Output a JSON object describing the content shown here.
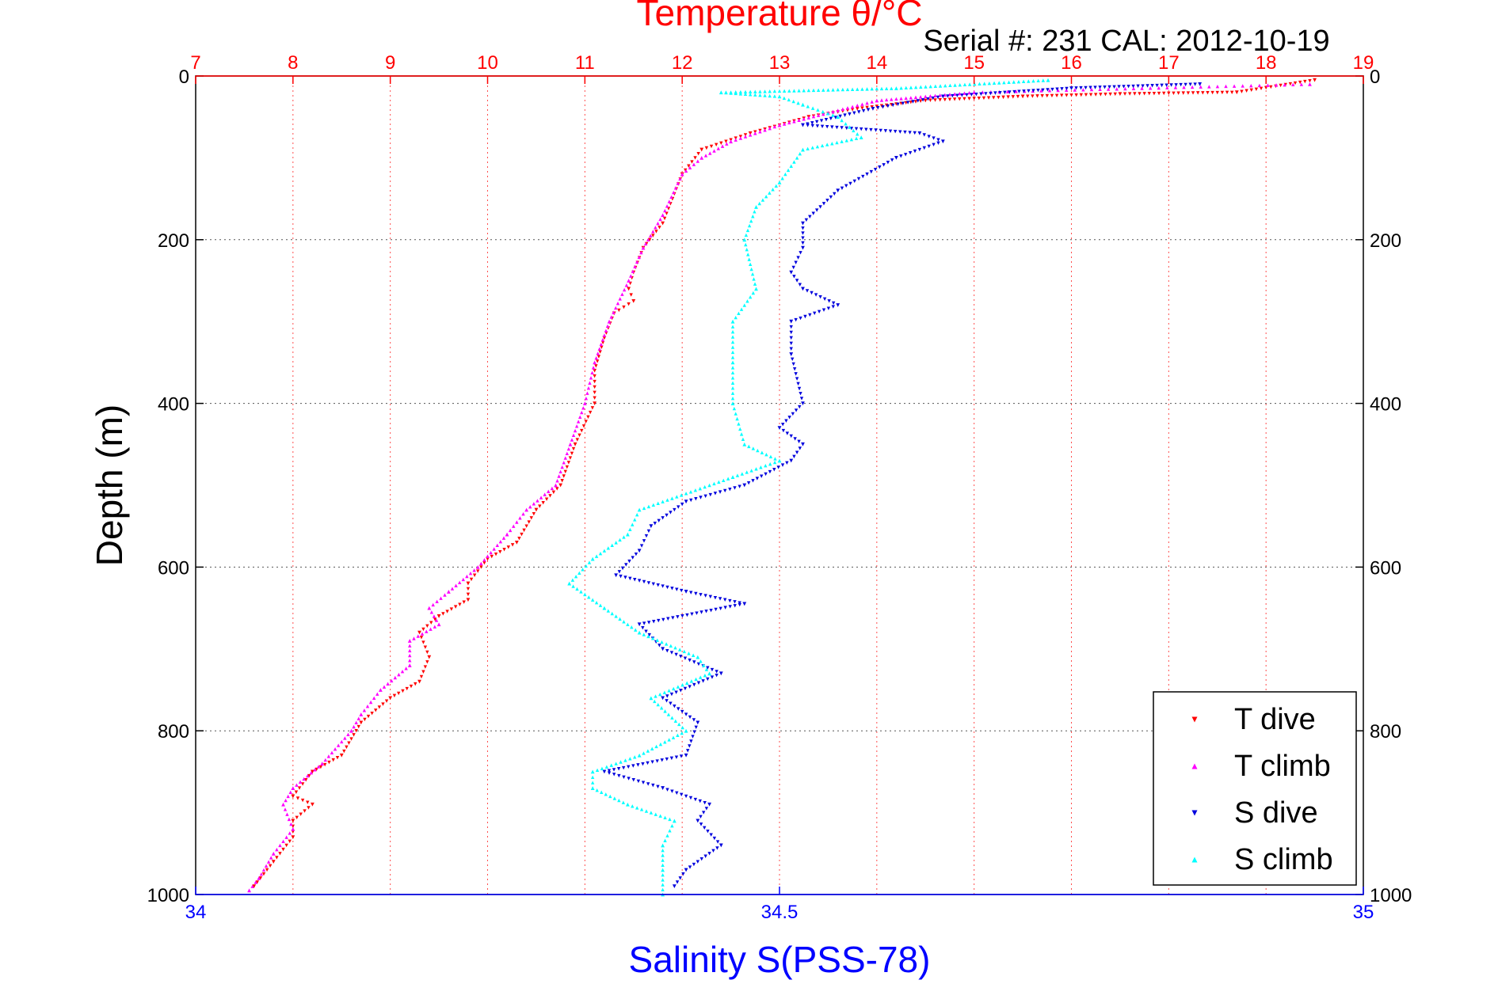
{
  "chart_data": {
    "type": "scatter",
    "title": "Temperature θ/°C",
    "subtitle": "Serial #: 231   CAL: 2012-10-19",
    "xlabel": "Salinity S(PSS-78)",
    "ylabel": "Depth (m)",
    "x_top": {
      "range": [
        7,
        19
      ],
      "ticks": [
        7,
        8,
        9,
        10,
        11,
        12,
        13,
        14,
        15,
        16,
        17,
        18,
        19
      ],
      "tick_labels": [
        "7",
        "8",
        "9",
        "10",
        "11",
        "12",
        "13",
        "14",
        "15",
        "16",
        "17",
        "18",
        "19"
      ],
      "color": "#ff0000"
    },
    "x_bottom": {
      "range": [
        34,
        35
      ],
      "ticks": [
        34,
        34.5,
        35
      ],
      "tick_labels": [
        "34",
        "34.5",
        "35"
      ],
      "color": "#0000ff"
    },
    "y": {
      "range": [
        0,
        1000
      ],
      "reversed": true,
      "ticks": [
        0,
        200,
        400,
        600,
        800,
        1000
      ],
      "tick_labels": [
        "0",
        "200",
        "400",
        "600",
        "800",
        "1000"
      ]
    },
    "grid": true,
    "legend_position": "bottom-right",
    "series": [
      {
        "name": "T dive",
        "axis": "top",
        "color": "#ff0000",
        "marker": "triangle-down",
        "points": [
          [
            18.5,
            5
          ],
          [
            17.7,
            20
          ],
          [
            16.5,
            22
          ],
          [
            15.5,
            25
          ],
          [
            14.5,
            30
          ],
          [
            13.8,
            40
          ],
          [
            13.3,
            50
          ],
          [
            12.7,
            70
          ],
          [
            12.2,
            90
          ],
          [
            12.0,
            120
          ],
          [
            11.9,
            150
          ],
          [
            11.8,
            180
          ],
          [
            11.6,
            210
          ],
          [
            11.5,
            240
          ],
          [
            11.45,
            260
          ],
          [
            11.5,
            275
          ],
          [
            11.3,
            290
          ],
          [
            11.2,
            320
          ],
          [
            11.1,
            360
          ],
          [
            11.1,
            400
          ],
          [
            10.9,
            450
          ],
          [
            10.75,
            500
          ],
          [
            10.5,
            530
          ],
          [
            10.3,
            570
          ],
          [
            10.0,
            590
          ],
          [
            9.8,
            620
          ],
          [
            9.8,
            640
          ],
          [
            9.5,
            660
          ],
          [
            9.3,
            680
          ],
          [
            9.4,
            710
          ],
          [
            9.3,
            740
          ],
          [
            9.0,
            760
          ],
          [
            8.7,
            790
          ],
          [
            8.5,
            830
          ],
          [
            8.2,
            850
          ],
          [
            8.0,
            880
          ],
          [
            8.2,
            890
          ],
          [
            8.0,
            910
          ],
          [
            8.0,
            930
          ],
          [
            7.8,
            960
          ],
          [
            7.6,
            990
          ]
        ]
      },
      {
        "name": "T climb",
        "axis": "top",
        "color": "#ff00ff",
        "marker": "triangle-up",
        "points": [
          [
            18.45,
            10
          ],
          [
            15.0,
            20
          ],
          [
            14.0,
            30
          ],
          [
            13.5,
            45
          ],
          [
            13.0,
            60
          ],
          [
            12.5,
            80
          ],
          [
            12.2,
            100
          ],
          [
            12.0,
            120
          ],
          [
            11.8,
            170
          ],
          [
            11.6,
            210
          ],
          [
            11.45,
            250
          ],
          [
            11.25,
            300
          ],
          [
            11.1,
            350
          ],
          [
            11.0,
            400
          ],
          [
            10.85,
            450
          ],
          [
            10.7,
            500
          ],
          [
            10.4,
            530
          ],
          [
            10.2,
            560
          ],
          [
            9.9,
            600
          ],
          [
            9.6,
            630
          ],
          [
            9.4,
            650
          ],
          [
            9.5,
            670
          ],
          [
            9.2,
            690
          ],
          [
            9.2,
            720
          ],
          [
            8.9,
            750
          ],
          [
            8.7,
            780
          ],
          [
            8.6,
            800
          ],
          [
            8.3,
            840
          ],
          [
            8.0,
            870
          ],
          [
            7.9,
            890
          ],
          [
            8.0,
            920
          ],
          [
            7.8,
            950
          ],
          [
            7.65,
            980
          ],
          [
            7.55,
            995
          ]
        ]
      },
      {
        "name": "S dive",
        "axis": "bottom",
        "color": "#0000dd",
        "marker": "triangle-down",
        "points": [
          [
            34.86,
            10
          ],
          [
            34.75,
            15
          ],
          [
            34.64,
            25
          ],
          [
            34.58,
            40
          ],
          [
            34.52,
            60
          ],
          [
            34.62,
            70
          ],
          [
            34.64,
            80
          ],
          [
            34.6,
            100
          ],
          [
            34.55,
            140
          ],
          [
            34.52,
            180
          ],
          [
            34.52,
            210
          ],
          [
            34.51,
            240
          ],
          [
            34.52,
            260
          ],
          [
            34.55,
            280
          ],
          [
            34.51,
            300
          ],
          [
            34.51,
            340
          ],
          [
            34.52,
            400
          ],
          [
            34.5,
            430
          ],
          [
            34.52,
            450
          ],
          [
            34.51,
            470
          ],
          [
            34.47,
            500
          ],
          [
            34.42,
            520
          ],
          [
            34.39,
            550
          ],
          [
            34.38,
            580
          ],
          [
            34.36,
            610
          ],
          [
            34.42,
            630
          ],
          [
            34.47,
            645
          ],
          [
            34.38,
            670
          ],
          [
            34.4,
            700
          ],
          [
            34.45,
            730
          ],
          [
            34.4,
            760
          ],
          [
            34.43,
            790
          ],
          [
            34.42,
            830
          ],
          [
            34.35,
            850
          ],
          [
            34.4,
            870
          ],
          [
            34.44,
            890
          ],
          [
            34.43,
            910
          ],
          [
            34.45,
            940
          ],
          [
            34.42,
            970
          ],
          [
            34.41,
            990
          ]
        ]
      },
      {
        "name": "S climb",
        "axis": "bottom",
        "color": "#00ffff",
        "marker": "triangle-up",
        "points": [
          [
            34.73,
            5
          ],
          [
            34.6,
            15
          ],
          [
            34.45,
            20
          ],
          [
            34.5,
            25
          ],
          [
            34.52,
            35
          ],
          [
            34.55,
            50
          ],
          [
            34.57,
            75
          ],
          [
            34.52,
            90
          ],
          [
            34.5,
            130
          ],
          [
            34.48,
            160
          ],
          [
            34.47,
            200
          ],
          [
            34.48,
            260
          ],
          [
            34.46,
            300
          ],
          [
            34.46,
            350
          ],
          [
            34.46,
            400
          ],
          [
            34.47,
            450
          ],
          [
            34.5,
            470
          ],
          [
            34.46,
            490
          ],
          [
            34.38,
            530
          ],
          [
            34.37,
            560
          ],
          [
            34.34,
            590
          ],
          [
            34.32,
            620
          ],
          [
            34.35,
            650
          ],
          [
            34.38,
            680
          ],
          [
            34.43,
            710
          ],
          [
            34.44,
            730
          ],
          [
            34.39,
            760
          ],
          [
            34.42,
            800
          ],
          [
            34.38,
            830
          ],
          [
            34.34,
            850
          ],
          [
            34.34,
            870
          ],
          [
            34.37,
            890
          ],
          [
            34.41,
            910
          ],
          [
            34.4,
            940
          ],
          [
            34.4,
            970
          ],
          [
            34.4,
            1000
          ]
        ]
      }
    ]
  }
}
